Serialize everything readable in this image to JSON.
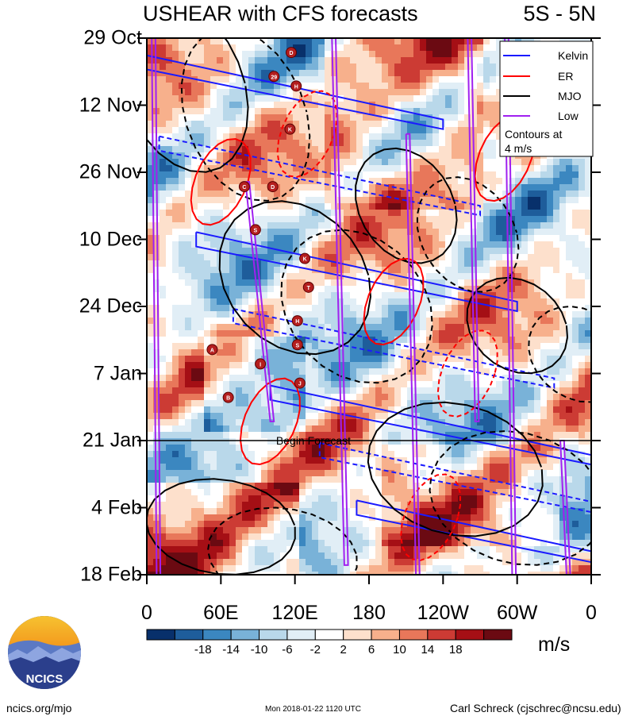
{
  "header": {
    "title": "USHEAR with CFS forecasts",
    "region": "5S - 5N"
  },
  "chart_data": {
    "type": "heatmap",
    "title": "USHEAR with CFS forecasts",
    "subtitle": "5S - 5N",
    "xlabel": "",
    "ylabel": "",
    "x_ticks": [
      "0",
      "60E",
      "120E",
      "180",
      "120W",
      "60W",
      "0"
    ],
    "x_values": [
      0,
      60,
      120,
      180,
      240,
      300,
      360
    ],
    "xlim": [
      0,
      360
    ],
    "y_ticks": [
      "29 Oct",
      "12 Nov",
      "26 Nov",
      "10 Dec",
      "24 Dec",
      "7 Jan",
      "21 Jan",
      "4 Feb",
      "18 Feb"
    ],
    "y_values": [
      0,
      14,
      28,
      42,
      56,
      70,
      84,
      98,
      112
    ],
    "ylim": [
      0,
      112
    ],
    "forecast_start_day": 84,
    "annotation": "Begin Forecast",
    "legend": {
      "placement": "top-right",
      "entries": [
        {
          "name": "Kelvin",
          "color": "#1a1aff"
        },
        {
          "name": "ER",
          "color": "#ff0000"
        },
        {
          "name": "MJO",
          "color": "#000000"
        },
        {
          "name": "Low",
          "color": "#a020f0"
        }
      ],
      "note_line1": "Contours at",
      "note_line2": "4 m/s"
    },
    "colorbar": {
      "unit": "m/s",
      "tick_labels": [
        "-18",
        "-14",
        "-10",
        "-6",
        "-2",
        "2",
        "6",
        "10",
        "14",
        "18"
      ],
      "colors": [
        "#08306b",
        "#1e5d9b",
        "#3b87c0",
        "#79b2d8",
        "#b9d8ea",
        "#e1eef6",
        "#ffffff",
        "#fde0cc",
        "#f7b08c",
        "#e8775a",
        "#cc3b34",
        "#a50f15",
        "#6b0a12"
      ]
    },
    "storms": [
      {
        "label": "D",
        "lon": 117,
        "day": 3
      },
      {
        "label": "29",
        "lon": 103,
        "day": 8
      },
      {
        "label": "H",
        "lon": 121,
        "day": 10
      },
      {
        "label": "K",
        "lon": 116,
        "day": 19
      },
      {
        "label": "C",
        "lon": 79,
        "day": 31
      },
      {
        "label": "D",
        "lon": 102,
        "day": 31
      },
      {
        "label": "S",
        "lon": 88,
        "day": 40
      },
      {
        "label": "K",
        "lon": 128,
        "day": 46
      },
      {
        "label": "T",
        "lon": 131,
        "day": 52
      },
      {
        "label": "H",
        "lon": 122,
        "day": 59
      },
      {
        "label": "S",
        "lon": 122,
        "day": 64
      },
      {
        "label": "A",
        "lon": 53,
        "day": 65
      },
      {
        "label": "I",
        "lon": 92,
        "day": 68
      },
      {
        "label": "J",
        "lon": 124,
        "day": 72
      },
      {
        "label": "B",
        "lon": 66,
        "day": 75
      }
    ]
  },
  "footer": {
    "left": "ncics.org/mjo",
    "middle": "Mon 2018-01-22 1120 UTC",
    "right": "Carl Schreck (cjschrec@ncsu.edu)"
  },
  "logo": {
    "text": "NCICS"
  }
}
